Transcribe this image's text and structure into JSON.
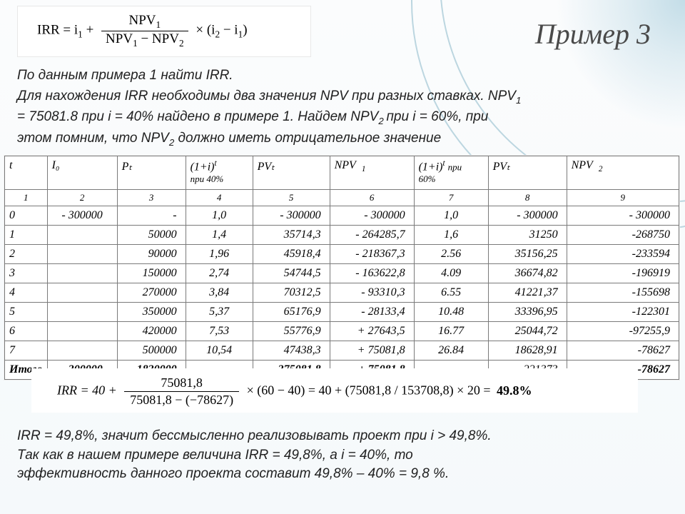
{
  "title": "Пример 3",
  "formula_top": {
    "lhs": "IRR = i",
    "lhs_sub": "1",
    "plus": " + ",
    "num": "NPV",
    "num_sub": "1",
    "den_left": "NPV",
    "den_left_sub": "1",
    "den_minus": " − NPV",
    "den_right_sub": "2",
    "tail": " × (i",
    "tail_sub2": "2",
    "tail_mid": " − i",
    "tail_sub1": "1",
    "tail_end": ")"
  },
  "intro_lines": [
    "По данным примера 1 найти IRR.",
    "Для нахождения IRR необходимы два значения NPV при разных ставках. NPV",
    "= 75081.8 при i = 40% найдено в примере 1. Найдем NPV",
    "этом помним, что NPV",
    "должно иметь отрицательное значение"
  ],
  "intro_sub1": "1",
  "intro_sub2a": "2 ",
  "intro_at60": "при i = 60%, при",
  "intro_sub2b": "2",
  "table": {
    "headers": {
      "t": "t",
      "i0": "I₀",
      "pt": "Pₜ",
      "f40a": "(1+i)",
      "f40s": "t",
      "f40b": "при 40%",
      "pv1": "PVₜ",
      "npv1": "NPV",
      "npv1s": "1",
      "f60a": "(1+i)",
      "f60s": "t",
      "f60b": "при",
      "f60c": "60%",
      "pv2": "PVₜ",
      "npv2": "NPV",
      "npv2s": "2"
    },
    "colnums": [
      "1",
      "2",
      "3",
      "4",
      "5",
      "6",
      "7",
      "8",
      "9"
    ],
    "rows": [
      {
        "t": "0",
        "i0": "- 300000",
        "pt": "-",
        "f40": "1,0",
        "pv1": "- 300000",
        "npv1": "- 300000",
        "f60": "1,0",
        "pv2": "- 300000",
        "npv2": "- 300000"
      },
      {
        "t": "1",
        "i0": "",
        "pt": "50000",
        "f40": "1,4",
        "pv1": "35714,3",
        "npv1": "- 264285,7",
        "f60": "1,6",
        "pv2": "31250",
        "npv2": "-268750"
      },
      {
        "t": "2",
        "i0": "",
        "pt": "90000",
        "f40": "1,96",
        "pv1": "45918,4",
        "npv1": "- 218367,3",
        "f60": "2.56",
        "pv2": "35156,25",
        "npv2": "-233594"
      },
      {
        "t": "3",
        "i0": "",
        "pt": "150000",
        "f40": "2,74",
        "pv1": "54744,5",
        "npv1": "- 163622,8",
        "f60": "4.09",
        "pv2": "36674,82",
        "npv2": "-196919"
      },
      {
        "t": "4",
        "i0": "",
        "pt": "270000",
        "f40": "3,84",
        "pv1": "70312,5",
        "npv1": "- 93310,3",
        "f60": "6.55",
        "pv2": "41221,37",
        "npv2": "-155698"
      },
      {
        "t": "5",
        "i0": "",
        "pt": "350000",
        "f40": "5,37",
        "pv1": "65176,9",
        "npv1": "- 28133,4",
        "f60": "10.48",
        "pv2": "33396,95",
        "npv2": "-122301"
      },
      {
        "t": "6",
        "i0": "",
        "pt": "420000",
        "f40": "7,53",
        "pv1": "55776,9",
        "npv1": "+ 27643,5",
        "f60": "16.77",
        "pv2": "25044,72",
        "npv2": "-97255,9"
      },
      {
        "t": "7",
        "i0": "",
        "pt": "500000",
        "f40": "10,54",
        "pv1": "47438,3",
        "npv1": "+ 75081,8",
        "f60": "26.84",
        "pv2": "18628,91",
        "npv2": "-78627"
      }
    ],
    "total": {
      "t": "Итого",
      "i0": "- 300000",
      "pt": "1830000",
      "f40": "-",
      "pv1": "375081,8",
      "npv1": "+ 75081,8",
      "f60": "-",
      "pv2": "221373",
      "npv2": "-78627"
    }
  },
  "formula_mid": {
    "lhs": "IRR = 40 + ",
    "num": "75081,8",
    "den": "75081,8 − (−78627)",
    "mid": " × (60 − 40) = 40 + (75081,8 / 153708,8) × 20 = ",
    "result": "49.8%"
  },
  "conclusion": [
    "IRR = 49,8%, значит бессмысленно реализовывать проект при i > 49,8%.",
    "Так как в нашем примере величина IRR = 49,8%, а i = 40%, то",
    "эффективность данного проекта составит 49,8% – 40% = 9,8 %."
  ]
}
